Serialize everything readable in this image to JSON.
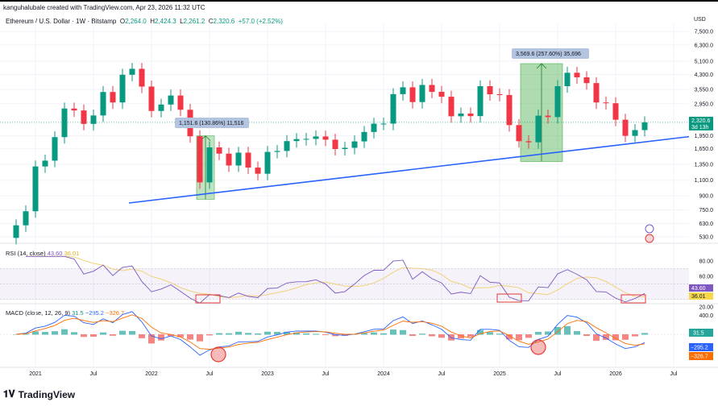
{
  "header": {
    "credit": "kanguhalubale created with TradingView.com, Apr 23, 2026 11:32 UTC",
    "symbol": "Ethereum / U.S. Dollar · 1W · Bitstamp",
    "o_label": "O",
    "o": "2,264.0",
    "h_label": "H",
    "h": "2,424.3",
    "l_label": "L",
    "l": "2,261.2",
    "c_label": "C",
    "c": "2,320.6",
    "change": "+57.0 (+2.52%)"
  },
  "currency": "USD",
  "last_price": {
    "value": "2,320.6",
    "countdown": "3d 13h"
  },
  "rsi": {
    "label": "RSI (14, close)",
    "value": "43.60",
    "ma": "36.01",
    "axis": [
      "80.00",
      "60.00",
      "20.00"
    ]
  },
  "macd": {
    "label": "MACD (close, 12, 26, 9)",
    "hist": "31.5",
    "macd": "−295.2",
    "signal": "−326.7",
    "axis": [
      "400.0"
    ]
  },
  "annotations": {
    "measure1": "1,151.6 (130.86%) 11,516",
    "measure2": "3,569.6 (257.60%) 35,696"
  },
  "logo_text": "TradingView",
  "colors": {
    "up": "#089981",
    "down": "#f23645",
    "trendline": "#2962ff",
    "rsi": "#7e57c2",
    "rsi_ma": "#f7c948",
    "macd": "#2962ff",
    "signal": "#ff6d00",
    "measure": "#4caf50"
  },
  "chart_data": {
    "type": "candlestick",
    "scale": "log",
    "y_ticks": [
      7500,
      6300,
      5100,
      4300,
      3550,
      2950,
      1950,
      1650,
      1350,
      1100,
      900,
      750,
      630,
      530
    ],
    "x_ticks": [
      "2021",
      "Jul",
      "2022",
      "Jul",
      "2023",
      "Jul",
      "2024",
      "Jul",
      "2025",
      "Jul",
      "2026",
      "Jul"
    ],
    "closes": [
      615,
      737,
      1314,
      1416,
      1918,
      2773,
      2706,
      2275,
      2536,
      3433,
      3000,
      4288,
      4630,
      3683,
      2688,
      2920,
      3280,
      2730,
      1940,
      1070,
      1680,
      1550,
      1330,
      1570,
      1295,
      1196,
      1585,
      1605,
      1822,
      1870,
      1875,
      1935,
      1856,
      1645,
      1671,
      1815,
      2050,
      2282,
      2283,
      3340,
      3647,
      3015,
      3760,
      3440,
      3230,
      2510,
      2600,
      2515,
      3700,
      3335,
      3300,
      2240,
      1820,
      1795,
      2530,
      2485,
      3700,
      4400,
      4150,
      3850,
      3000,
      2970,
      2400,
      1950,
      2100,
      2320.6
    ],
    "trendline": {
      "from": [
        "2021-12",
        820
      ],
      "to": [
        "2026-07",
        1930
      ]
    }
  }
}
